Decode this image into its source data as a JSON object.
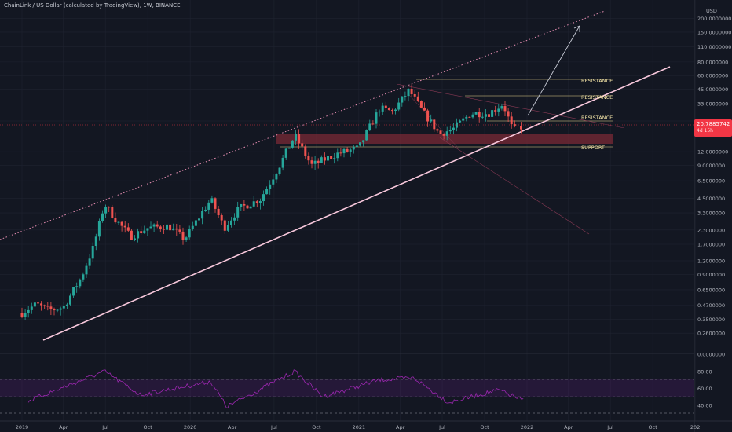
{
  "header": {
    "title": "ChainLink / US Dollar (calculated by TradingView), 1W, BINANCE"
  },
  "price_axis": {
    "currency": "USD",
    "labels": [
      "320.0000000",
      "200.0000000",
      "150.0000000",
      "110.0000000",
      "80.0000000",
      "60.0000000",
      "45.0000000",
      "33.0000000",
      "23.0000000",
      "12.0000000",
      "9.0000000",
      "6.5000000",
      "4.5000000",
      "3.3000000",
      "2.3000000",
      "1.7000000",
      "1.2000000",
      "0.9000000",
      "0.6500000",
      "0.4700000",
      "0.3500000",
      "0.2600000",
      "0.0000000"
    ]
  },
  "last_price": {
    "value": "20.7885742",
    "countdown": "4d 15h",
    "color": "#f23645"
  },
  "rsi_axis": {
    "labels": [
      "80.00",
      "60.00",
      "40.00"
    ]
  },
  "time_axis": {
    "labels": [
      "2019",
      "Apr",
      "Jul",
      "Oct",
      "2020",
      "Apr",
      "Jul",
      "Oct",
      "2021",
      "Apr",
      "Jul",
      "Oct",
      "2022",
      "Apr",
      "Jul",
      "Oct",
      "202"
    ]
  },
  "annotations": {
    "resistance_1": "RESISTANCE",
    "resistance_2": "RESISTANCE",
    "resistance_3": "RESISTANCE",
    "support": "SUPPORT"
  },
  "colors": {
    "background": "#131722",
    "up": "#26a69a",
    "down": "#ef5350",
    "trendline": "#f8c8dc",
    "rsi": "#9c27b0"
  },
  "chart_data": {
    "type": "candlestick",
    "instrument": "ChainLink / US Dollar",
    "interval": "1W",
    "scale": "log",
    "x_range": [
      "2019-01-01",
      "2022-12-31"
    ],
    "ylim": [
      0.22,
      330
    ],
    "weekly_close_path": [
      {
        "date": "2019-01-01",
        "close": 0.4
      },
      {
        "date": "2019-02-01",
        "close": 0.48
      },
      {
        "date": "2019-03-01",
        "close": 0.42
      },
      {
        "date": "2019-04-01",
        "close": 0.45
      },
      {
        "date": "2019-05-10",
        "close": 0.85
      },
      {
        "date": "2019-06-05",
        "close": 1.6
      },
      {
        "date": "2019-06-29",
        "close": 4.0
      },
      {
        "date": "2019-07-25",
        "close": 2.8
      },
      {
        "date": "2019-08-25",
        "close": 2.0
      },
      {
        "date": "2019-10-01",
        "close": 2.4
      },
      {
        "date": "2019-11-15",
        "close": 2.5
      },
      {
        "date": "2019-12-20",
        "close": 1.9
      },
      {
        "date": "2020-02-15",
        "close": 4.4
      },
      {
        "date": "2020-03-15",
        "close": 2.4
      },
      {
        "date": "2020-04-15",
        "close": 3.6
      },
      {
        "date": "2020-06-01",
        "close": 4.4
      },
      {
        "date": "2020-07-10",
        "close": 8.5
      },
      {
        "date": "2020-08-15",
        "close": 17.0
      },
      {
        "date": "2020-09-20",
        "close": 9.0
      },
      {
        "date": "2020-11-15",
        "close": 11.5
      },
      {
        "date": "2021-01-01",
        "close": 13.0
      },
      {
        "date": "2021-02-15",
        "close": 30.0
      },
      {
        "date": "2021-03-15",
        "close": 28.0
      },
      {
        "date": "2021-04-20",
        "close": 44.0
      },
      {
        "date": "2021-05-20",
        "close": 28.0
      },
      {
        "date": "2021-06-25",
        "close": 17.5
      },
      {
        "date": "2021-07-25",
        "close": 19.5
      },
      {
        "date": "2021-09-01",
        "close": 27.0
      },
      {
        "date": "2021-10-10",
        "close": 27.0
      },
      {
        "date": "2021-11-10",
        "close": 33.0
      },
      {
        "date": "2021-12-01",
        "close": 19.0
      },
      {
        "date": "2021-12-25",
        "close": 20.79
      }
    ],
    "rsi": {
      "guides": [
        70,
        50,
        30
      ],
      "values": [
        {
          "date": "2019-01-15",
          "value": 45
        },
        {
          "date": "2019-06-29",
          "value": 80
        },
        {
          "date": "2019-09-15",
          "value": 52
        },
        {
          "date": "2020-02-15",
          "value": 68
        },
        {
          "date": "2020-03-20",
          "value": 38
        },
        {
          "date": "2020-08-15",
          "value": 80
        },
        {
          "date": "2020-10-15",
          "value": 50
        },
        {
          "date": "2021-02-15",
          "value": 70
        },
        {
          "date": "2021-05-01",
          "value": 72
        },
        {
          "date": "2021-07-15",
          "value": 43
        },
        {
          "date": "2021-11-01",
          "value": 58
        },
        {
          "date": "2021-12-25",
          "value": 45
        }
      ]
    }
  }
}
